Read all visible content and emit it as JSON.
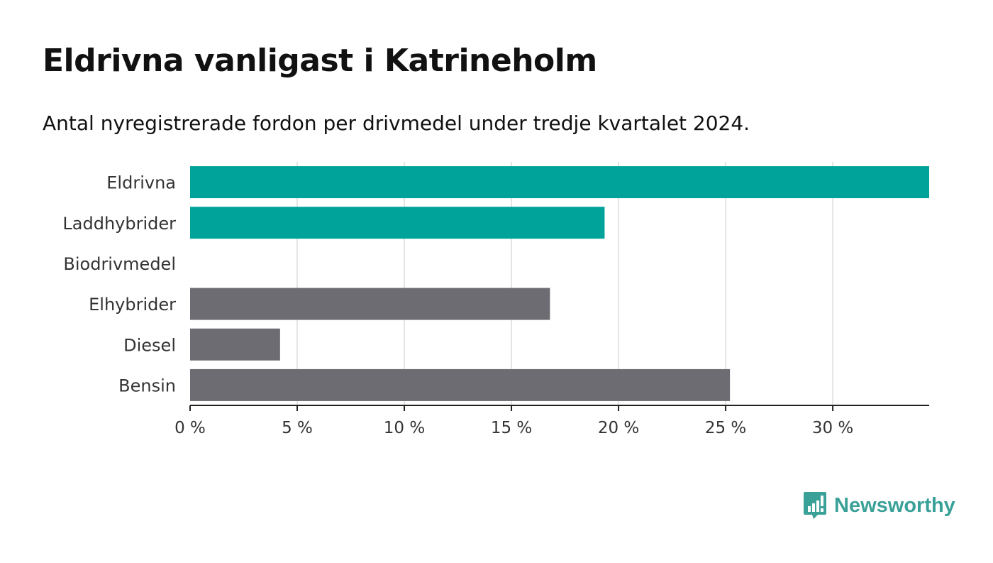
{
  "title": "Eldrivna vanligast i Katrineholm",
  "subtitle": "Antal nyregistrerade fordon per drivmedel under tredje kvartalet 2024.",
  "brand": {
    "name": "Newsworthy",
    "color": "#3aa198",
    "icon": "bar-chart-speech-bubble-icon"
  },
  "colors": {
    "highlight": "#00a39a",
    "default": "#6d6c72",
    "grid": "#dcdcdc",
    "axis": "#222222"
  },
  "chart_data": {
    "type": "bar",
    "orientation": "horizontal",
    "categories": [
      "Eldrivna",
      "Laddhybrider",
      "Biodrivmedel",
      "Elhybrider",
      "Diesel",
      "Bensin"
    ],
    "values": [
      34.5,
      19.35,
      0,
      16.8,
      4.2,
      25.2
    ],
    "highlighted": [
      true,
      true,
      false,
      false,
      false,
      false
    ],
    "xlim": [
      0,
      34.5
    ],
    "xticks": [
      0,
      5,
      10,
      15,
      20,
      25,
      30
    ],
    "xtick_labels": [
      "0 %",
      "5 %",
      "10 %",
      "15 %",
      "20 %",
      "25 %",
      "30 %"
    ],
    "grid": true
  }
}
